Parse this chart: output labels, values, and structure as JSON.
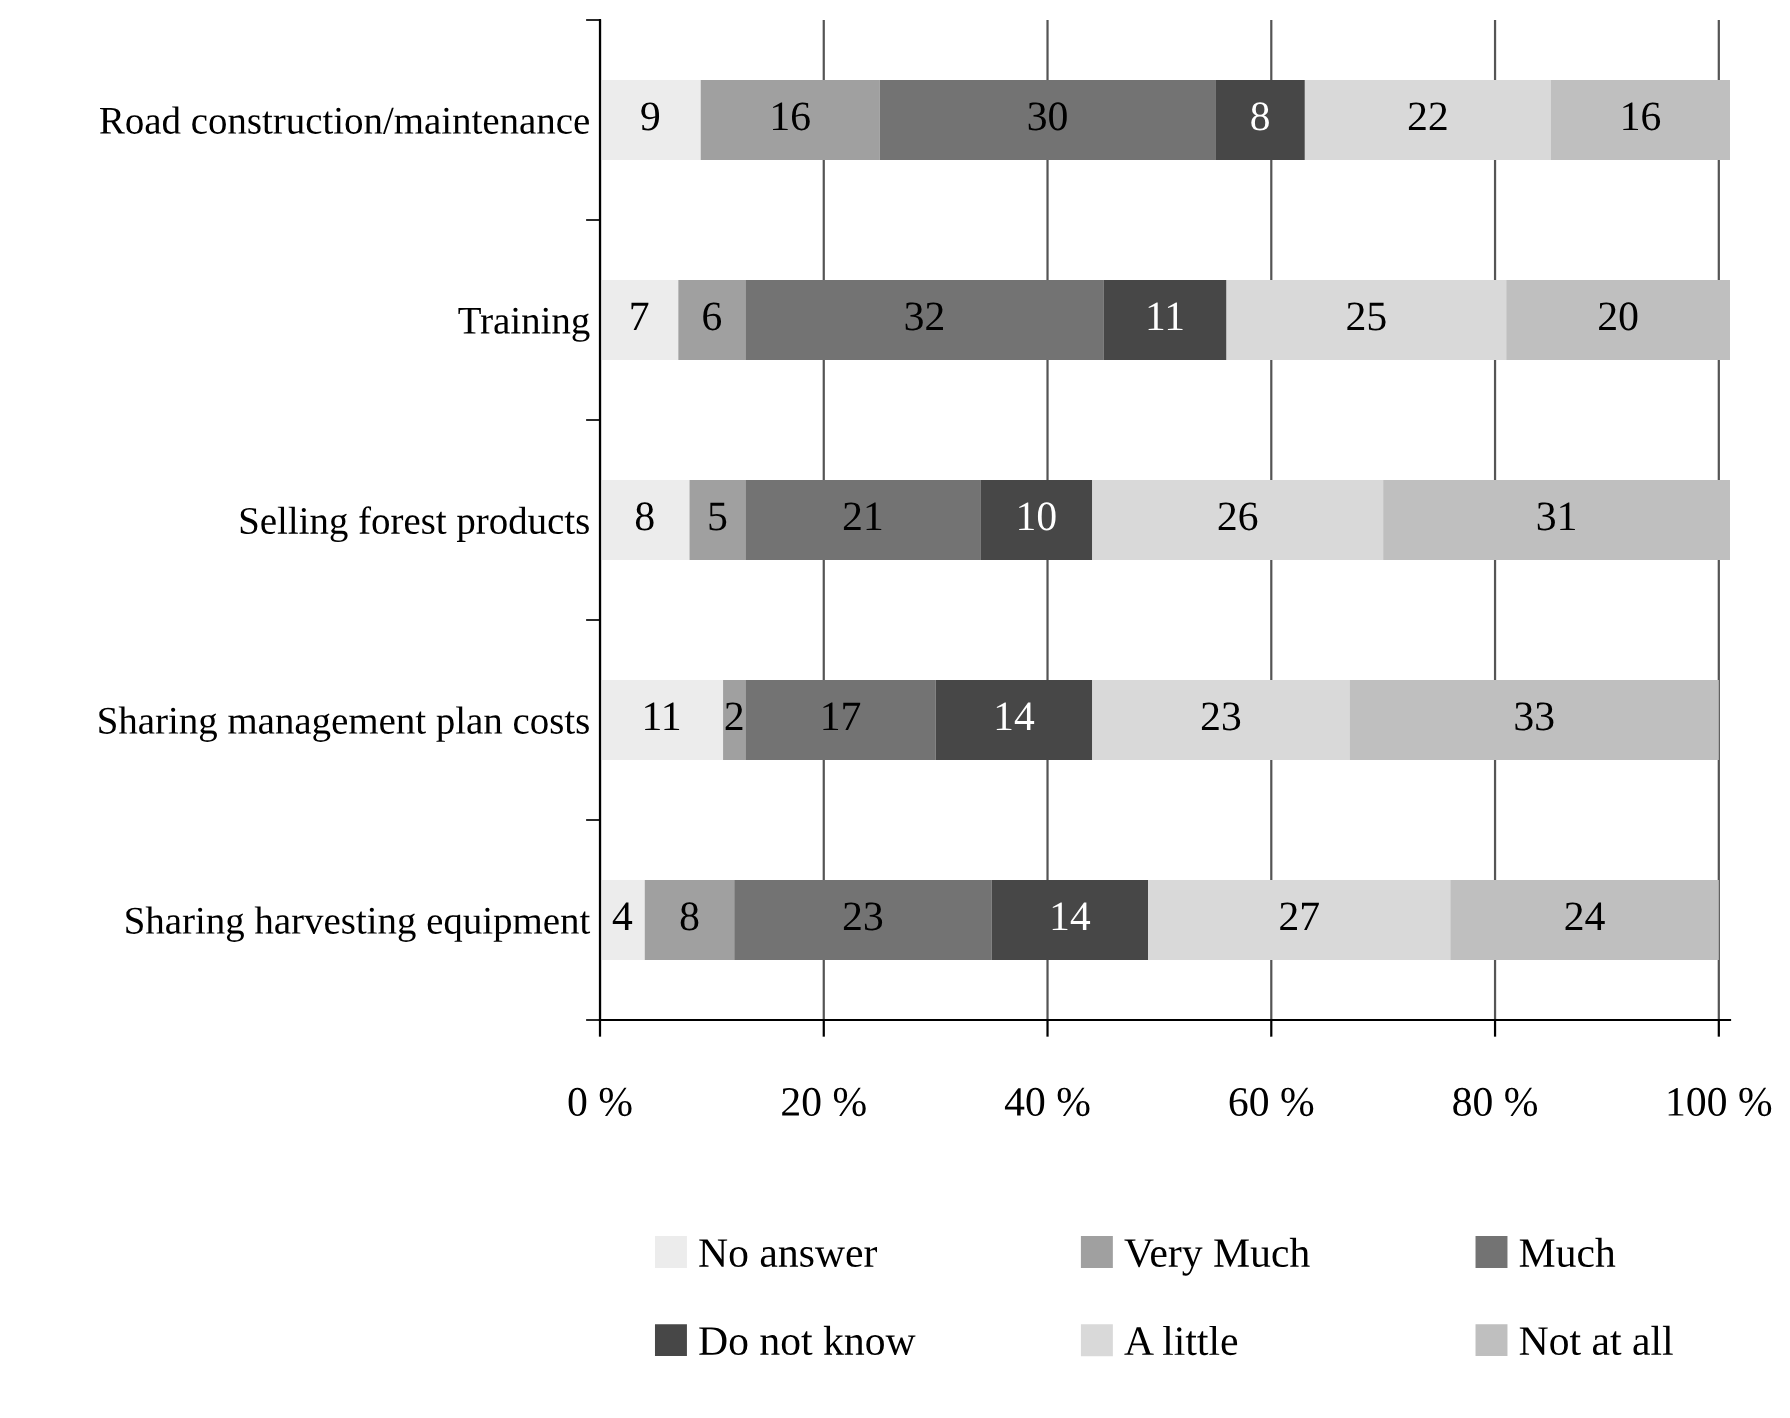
{
  "chart_data": {
    "type": "bar",
    "orientation": "horizontal",
    "stacked": true,
    "data_labels": true,
    "grid": "x",
    "legend": "bottom",
    "categories": [
      "Road construction/maintenance",
      "Training",
      "Selling forest products",
      "Sharing management plan costs",
      "Sharing harvesting equipment"
    ],
    "series": [
      {
        "name": "No answer",
        "color": "#ececec",
        "values": [
          9,
          7,
          8,
          11,
          4
        ]
      },
      {
        "name": "Very Much",
        "color": "#a0a0a0",
        "values": [
          16,
          6,
          5,
          2,
          8
        ]
      },
      {
        "name": "Much",
        "color": "#737373",
        "values": [
          30,
          32,
          21,
          17,
          23
        ]
      },
      {
        "name": "Do not know",
        "color": "#474747",
        "values": [
          8,
          11,
          10,
          14,
          14
        ]
      },
      {
        "name": "A little",
        "color": "#d9d9d9",
        "values": [
          22,
          25,
          26,
          23,
          27
        ]
      },
      {
        "name": "Not at all",
        "color": "#bfbfbf",
        "values": [
          16,
          20,
          31,
          33,
          24
        ]
      }
    ],
    "xlim": [
      0,
      101
    ],
    "xticks": [
      {
        "value": 0,
        "label": "0 %"
      },
      {
        "value": 20,
        "label": "20 %"
      },
      {
        "value": 40,
        "label": "40 %"
      },
      {
        "value": 60,
        "label": "60 %"
      },
      {
        "value": 80,
        "label": "80 %"
      },
      {
        "value": 100,
        "label": "100 %"
      }
    ]
  }
}
